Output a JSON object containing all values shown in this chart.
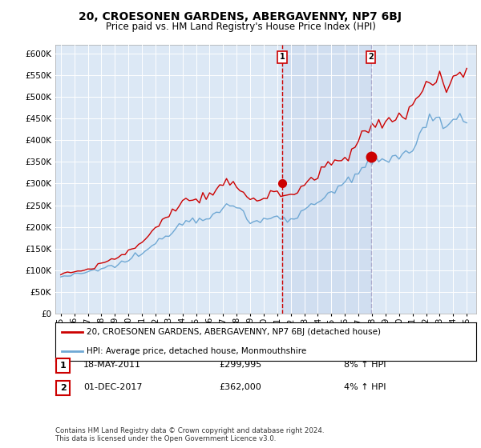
{
  "title": "20, CROESONEN GARDENS, ABERGAVENNY, NP7 6BJ",
  "subtitle": "Price paid vs. HM Land Registry's House Price Index (HPI)",
  "legend_line1": "20, CROESONEN GARDENS, ABERGAVENNY, NP7 6BJ (detached house)",
  "legend_line2": "HPI: Average price, detached house, Monmouthshire",
  "footnote": "Contains HM Land Registry data © Crown copyright and database right 2024.\nThis data is licensed under the Open Government Licence v3.0.",
  "annotation1_label": "1",
  "annotation1_date": "18-MAY-2011",
  "annotation1_price": "£299,995",
  "annotation1_hpi": "8% ↑ HPI",
  "annotation2_label": "2",
  "annotation2_date": "01-DEC-2017",
  "annotation2_price": "£362,000",
  "annotation2_hpi": "4% ↑ HPI",
  "hpi_color": "#6fa8d4",
  "sale_color": "#cc0000",
  "dashed_line1_color": "#cc0000",
  "dashed_line2_color": "#aaaacc",
  "annotation_box_color": "#cc0000",
  "plot_bg_color": "#dce8f5",
  "shaded_region_color": "#c8d8ee",
  "fig_bg_color": "#ffffff",
  "ylim": [
    0,
    620000
  ],
  "yticks": [
    0,
    50000,
    100000,
    150000,
    200000,
    250000,
    300000,
    350000,
    400000,
    450000,
    500000,
    550000,
    600000
  ],
  "sale1_x": 2011.37,
  "sale1_y": 299995,
  "sale2_x": 2017.92,
  "sale2_y": 362000,
  "xlim_start": 1994.6,
  "xlim_end": 2025.7,
  "hpi_years": [
    1995.0,
    1995.25,
    1995.5,
    1995.75,
    1996.0,
    1996.25,
    1996.5,
    1996.75,
    1997.0,
    1997.25,
    1997.5,
    1997.75,
    1998.0,
    1998.25,
    1998.5,
    1998.75,
    1999.0,
    1999.25,
    1999.5,
    1999.75,
    2000.0,
    2000.25,
    2000.5,
    2000.75,
    2001.0,
    2001.25,
    2001.5,
    2001.75,
    2002.0,
    2002.25,
    2002.5,
    2002.75,
    2003.0,
    2003.25,
    2003.5,
    2003.75,
    2004.0,
    2004.25,
    2004.5,
    2004.75,
    2005.0,
    2005.25,
    2005.5,
    2005.75,
    2006.0,
    2006.25,
    2006.5,
    2006.75,
    2007.0,
    2007.25,
    2007.5,
    2007.75,
    2008.0,
    2008.25,
    2008.5,
    2008.75,
    2009.0,
    2009.25,
    2009.5,
    2009.75,
    2010.0,
    2010.25,
    2010.5,
    2010.75,
    2011.0,
    2011.25,
    2011.5,
    2011.75,
    2012.0,
    2012.25,
    2012.5,
    2012.75,
    2013.0,
    2013.25,
    2013.5,
    2013.75,
    2014.0,
    2014.25,
    2014.5,
    2014.75,
    2015.0,
    2015.25,
    2015.5,
    2015.75,
    2016.0,
    2016.25,
    2016.5,
    2016.75,
    2017.0,
    2017.25,
    2017.5,
    2017.75,
    2018.0,
    2018.25,
    2018.5,
    2018.75,
    2019.0,
    2019.25,
    2019.5,
    2019.75,
    2020.0,
    2020.25,
    2020.5,
    2020.75,
    2021.0,
    2021.25,
    2021.5,
    2021.75,
    2022.0,
    2022.25,
    2022.5,
    2022.75,
    2023.0,
    2023.25,
    2023.5,
    2023.75,
    2024.0,
    2024.25,
    2024.5,
    2024.75,
    2025.0
  ],
  "hpi_vals": [
    85000,
    86000,
    87500,
    88000,
    89000,
    90500,
    92000,
    93000,
    95000,
    97000,
    99000,
    101000,
    103000,
    105000,
    107000,
    109000,
    111000,
    114000,
    117000,
    120000,
    123000,
    127000,
    131000,
    135000,
    139000,
    144000,
    149000,
    155000,
    161000,
    168000,
    175000,
    182000,
    188000,
    194000,
    200000,
    205000,
    210000,
    214000,
    217000,
    219000,
    220000,
    221000,
    222000,
    223000,
    225000,
    228000,
    232000,
    237000,
    242000,
    246000,
    248000,
    247000,
    244000,
    238000,
    230000,
    222000,
    215000,
    212000,
    211000,
    213000,
    216000,
    218000,
    219000,
    220000,
    221000,
    222000,
    222000,
    222000,
    222000,
    224000,
    227000,
    231000,
    236000,
    242000,
    248000,
    254000,
    260000,
    266000,
    272000,
    277000,
    281000,
    285000,
    289000,
    293000,
    297000,
    303000,
    309000,
    316000,
    323000,
    330000,
    336000,
    341000,
    345000,
    348000,
    350000,
    351000,
    352000,
    355000,
    359000,
    364000,
    369000,
    373000,
    376000,
    378000,
    379000,
    390000,
    405000,
    420000,
    435000,
    445000,
    450000,
    448000,
    444000,
    442000,
    441000,
    443000,
    446000,
    450000,
    455000,
    460000,
    463000
  ],
  "sale_vals": [
    92000,
    93000,
    94500,
    95000,
    96500,
    98000,
    99500,
    101000,
    103000,
    105500,
    108000,
    111000,
    114000,
    117000,
    120000,
    123000,
    126500,
    130500,
    134500,
    138500,
    142500,
    147500,
    153000,
    159000,
    165500,
    172500,
    180000,
    188000,
    196000,
    205000,
    214000,
    223000,
    232000,
    239000,
    245000,
    250000,
    255000,
    259000,
    262000,
    264000,
    265000,
    266000,
    267000,
    268000,
    270000,
    274000,
    279000,
    285000,
    291000,
    297000,
    301000,
    300000,
    297000,
    291000,
    283000,
    275000,
    268000,
    264000,
    263000,
    265000,
    268000,
    271000,
    273000,
    274000,
    275000,
    276000,
    276000,
    276000,
    277000,
    279000,
    283000,
    288000,
    294000,
    301000,
    308000,
    315000,
    322000,
    329000,
    336000,
    342000,
    347000,
    352000,
    357000,
    362000,
    367000,
    374000,
    381000,
    390000,
    399000,
    408000,
    416000,
    422000,
    427000,
    431000,
    434000,
    436000,
    437000,
    440000,
    445000,
    451000,
    458000,
    463000,
    467000,
    470000,
    471000,
    484000,
    501000,
    518000,
    533000,
    543000,
    548000,
    546000,
    542000,
    540000,
    539000,
    541000,
    545000,
    550000,
    556000,
    562000,
    566000
  ]
}
